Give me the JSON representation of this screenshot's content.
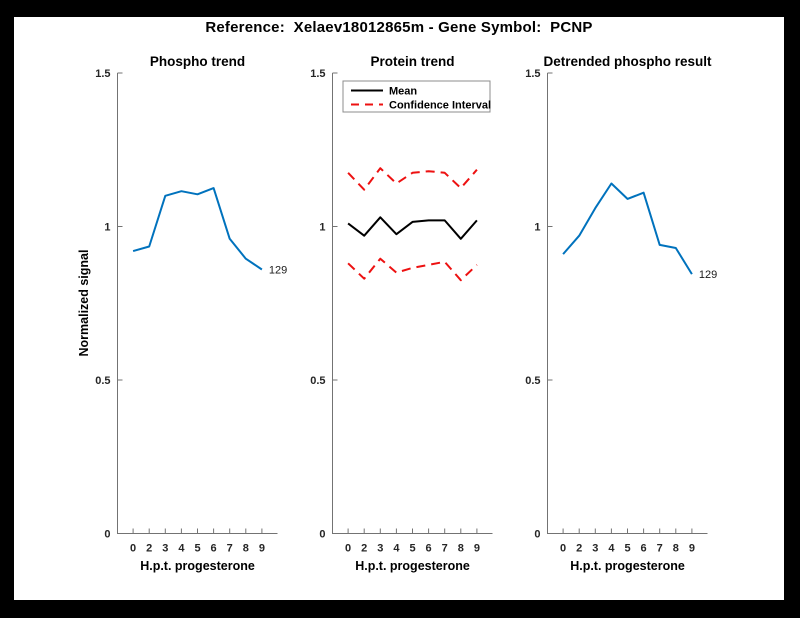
{
  "figure": {
    "title": "Reference:  Xelaev18012865m - Gene Symbol:  PCNP",
    "background_color": "#000000",
    "canvas_color": "#ffffff"
  },
  "colors": {
    "blue": "#0072BD",
    "red": "#ED1111",
    "black": "#000000",
    "axis": "#737373",
    "tick_text": "#262626",
    "legend_border": "#8c8c8c"
  },
  "chart_data": [
    {
      "type": "line",
      "title": "Phospho trend",
      "xlabel": "H.p.t. progesterone",
      "ylabel": "Normalized signal",
      "categories": [
        "0",
        "2",
        "3",
        "4",
        "5",
        "6",
        "7",
        "8",
        "9"
      ],
      "ylim": [
        0,
        1.5
      ],
      "yticks": [
        "0",
        "0.5",
        "1",
        "1.5"
      ],
      "grid": false,
      "series": [
        {
          "name": "phospho-trend",
          "color": "#0072BD",
          "dash": false,
          "values": [
            0.92,
            0.935,
            1.1,
            1.115,
            1.105,
            1.125,
            0.96,
            0.895,
            0.86
          ]
        }
      ],
      "end_label": "129"
    },
    {
      "type": "line",
      "title": "Protein trend",
      "xlabel": "H.p.t. progesterone",
      "ylabel": null,
      "categories": [
        "0",
        "2",
        "3",
        "4",
        "5",
        "6",
        "7",
        "8",
        "9"
      ],
      "ylim": [
        0,
        1.5
      ],
      "yticks": [
        "0",
        "0.5",
        "1",
        "1.5"
      ],
      "grid": false,
      "series": [
        {
          "name": "confidence-upper",
          "color": "#ED1111",
          "dash": true,
          "values": [
            1.175,
            1.12,
            1.19,
            1.14,
            1.175,
            1.18,
            1.175,
            1.125,
            1.185
          ]
        },
        {
          "name": "confidence-lower",
          "color": "#ED1111",
          "dash": true,
          "values": [
            0.88,
            0.83,
            0.895,
            0.85,
            0.865,
            0.875,
            0.885,
            0.825,
            0.875
          ]
        },
        {
          "name": "mean",
          "color": "#000000",
          "dash": false,
          "values": [
            1.01,
            0.97,
            1.03,
            0.975,
            1.015,
            1.02,
            1.02,
            0.96,
            1.02
          ]
        }
      ],
      "legend": {
        "position": "top-right",
        "entries": [
          {
            "label": "Mean",
            "color": "#000000",
            "dash": false
          },
          {
            "label": "Confidence Interval",
            "color": "#ED1111",
            "dash": true
          }
        ]
      },
      "end_label": null
    },
    {
      "type": "line",
      "title": "Detrended phospho result",
      "xlabel": "H.p.t. progesterone",
      "ylabel": null,
      "categories": [
        "0",
        "2",
        "3",
        "4",
        "5",
        "6",
        "7",
        "8",
        "9"
      ],
      "ylim": [
        0,
        1.5
      ],
      "yticks": [
        "0",
        "0.5",
        "1",
        "1.5"
      ],
      "grid": false,
      "series": [
        {
          "name": "detrended-phospho",
          "color": "#0072BD",
          "dash": false,
          "values": [
            0.91,
            0.97,
            1.06,
            1.14,
            1.09,
            1.11,
            0.94,
            0.93,
            0.845
          ]
        }
      ],
      "end_label": "129"
    }
  ]
}
